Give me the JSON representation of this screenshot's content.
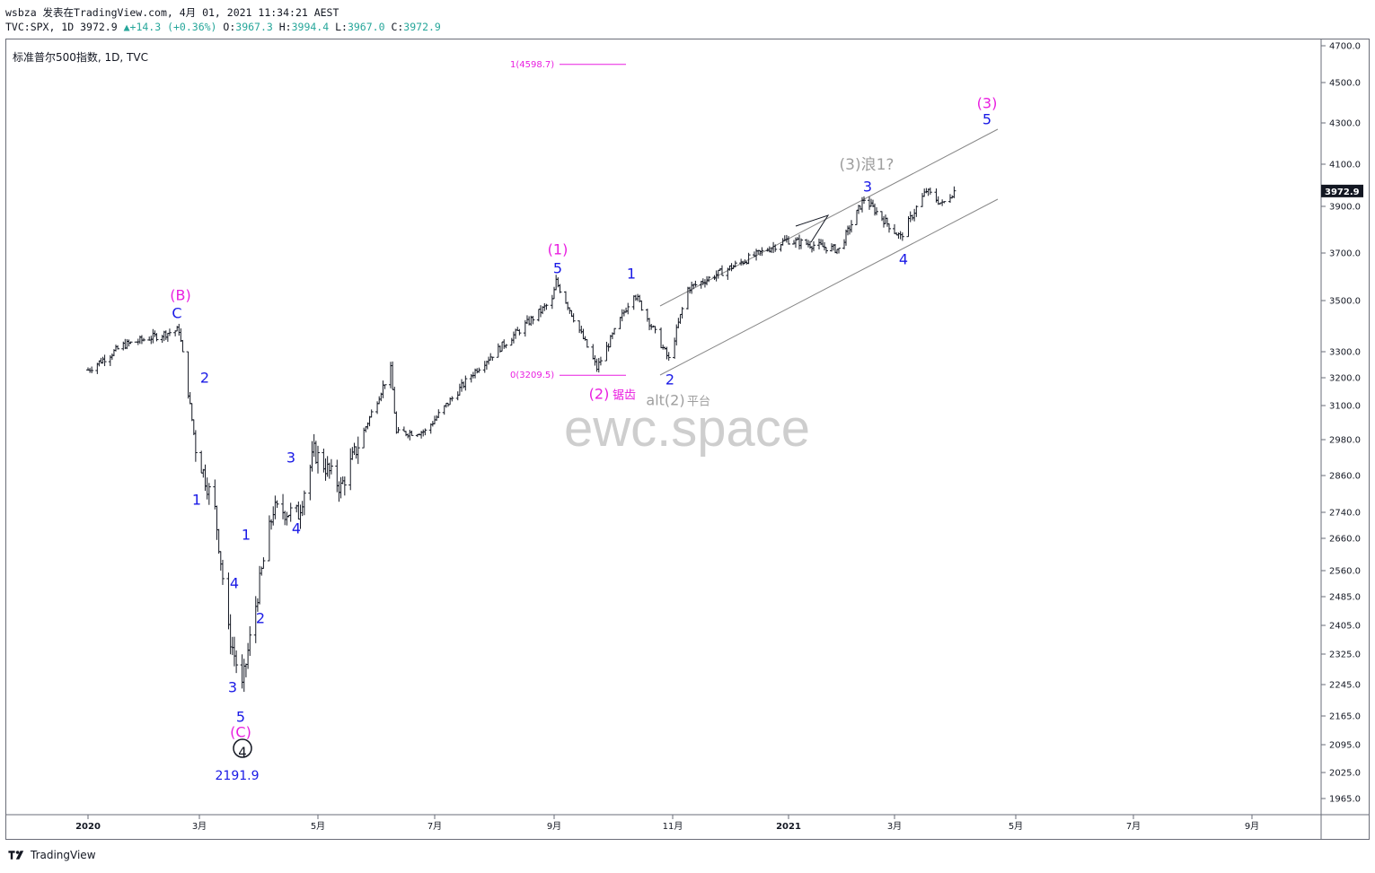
{
  "header": {
    "publisher_line": "wsbza 发表在TradingView.com, 4月 01, 2021 11:34:21 AEST",
    "ticker": "TVC:SPX, 1D",
    "last": "3972.9",
    "change": "+14.3 (+0.36%)",
    "o_label": "O:",
    "o": "3967.3",
    "h_label": "H:",
    "h": "3994.4",
    "l_label": "L:",
    "l": "3967.0",
    "c_label": "C:",
    "c": "3972.9"
  },
  "symbol_title": "标准普尔500指数, 1D, TVC",
  "watermark": "ewc.space",
  "footer_brand": "TradingView",
  "colors": {
    "magenta": "#e91ee0",
    "blue": "#1a1ae6",
    "gray": "#9e9e9e",
    "price_badge": "#131722"
  },
  "chart_data": {
    "type": "ohlc",
    "y_axis_ticks": [
      "4700.0",
      "4500.0",
      "4300.0",
      "4100.0",
      "3900.0",
      "3700.0",
      "3500.0",
      "3300.0",
      "3200.0",
      "3100.0",
      "2980.0",
      "2860.0",
      "2740.0",
      "2660.0",
      "2560.0",
      "2485.0",
      "2405.0",
      "2325.0",
      "2245.0",
      "2165.0",
      "2095.0",
      "2025.0",
      "1965.0"
    ],
    "x_axis_ticks": [
      "2020",
      "3月",
      "5月",
      "7月",
      "9月",
      "11月",
      "2021",
      "3月",
      "5月",
      "7月",
      "9月"
    ],
    "last_price_label": "3972.9",
    "price_path": [
      [
        "2020-01-01",
        3230
      ],
      [
        "2020-01-20",
        3325
      ],
      [
        "2020-02-19",
        3386
      ],
      [
        "2020-02-28",
        2954
      ],
      [
        "2020-03-09",
        2746
      ],
      [
        "2020-03-16",
        2386
      ],
      [
        "2020-03-23",
        2237
      ],
      [
        "2020-04-08",
        2749
      ],
      [
        "2020-04-21",
        2736
      ],
      [
        "2020-04-29",
        2939
      ],
      [
        "2020-05-13",
        2820
      ],
      [
        "2020-06-08",
        3232
      ],
      [
        "2020-06-11",
        3002
      ],
      [
        "2020-06-26",
        3009
      ],
      [
        "2020-07-23",
        3235
      ],
      [
        "2020-08-31",
        3500
      ],
      [
        "2020-09-02",
        3580
      ],
      [
        "2020-09-23",
        3237
      ],
      [
        "2020-10-12",
        3534
      ],
      [
        "2020-10-30",
        3270
      ],
      [
        "2020-11-09",
        3550
      ],
      [
        "2020-12-31",
        3756
      ],
      [
        "2021-01-29",
        3714
      ],
      [
        "2021-02-12",
        3934
      ],
      [
        "2021-03-04",
        3768
      ],
      [
        "2021-03-17",
        3974
      ],
      [
        "2021-03-25",
        3909
      ],
      [
        "2021-03-31",
        3972.9
      ]
    ],
    "wave_labels": [
      {
        "text": "(B)",
        "color": "magenta"
      },
      {
        "text": "C",
        "color": "blue"
      },
      {
        "text": "2",
        "color": "blue"
      },
      {
        "text": "1",
        "color": "blue"
      },
      {
        "text": "4",
        "color": "blue"
      },
      {
        "text": "3",
        "color": "blue"
      },
      {
        "text": "5",
        "color": "blue"
      },
      {
        "text": "(C)",
        "color": "magenta"
      },
      {
        "text": "4",
        "color": "black"
      },
      {
        "text": "2191.9",
        "color": "blue"
      },
      {
        "text": "1",
        "color": "blue"
      },
      {
        "text": "2",
        "color": "blue"
      },
      {
        "text": "3",
        "color": "blue"
      },
      {
        "text": "4",
        "color": "blue"
      },
      {
        "text": "(1)",
        "color": "magenta"
      },
      {
        "text": "5",
        "color": "blue"
      },
      {
        "text": "1",
        "color": "blue"
      },
      {
        "text": "2",
        "color": "blue"
      },
      {
        "text": "3",
        "color": "blue"
      },
      {
        "text": "4",
        "color": "blue"
      },
      {
        "text": "(3)",
        "color": "magenta"
      },
      {
        "text": "5",
        "color": "blue"
      },
      {
        "text": "(3)浪1?",
        "color": "gray"
      },
      {
        "text": "(2)",
        "color": "magenta"
      },
      {
        "text": "锯齿",
        "color": "magenta"
      },
      {
        "text": "alt(2)",
        "color": "gray"
      },
      {
        "text": "平台",
        "color": "gray"
      }
    ],
    "fib_levels": [
      {
        "label": "1(4598.7)",
        "value": 4598.7
      },
      {
        "label": "0(3209.5)",
        "value": 3209.5
      }
    ]
  }
}
